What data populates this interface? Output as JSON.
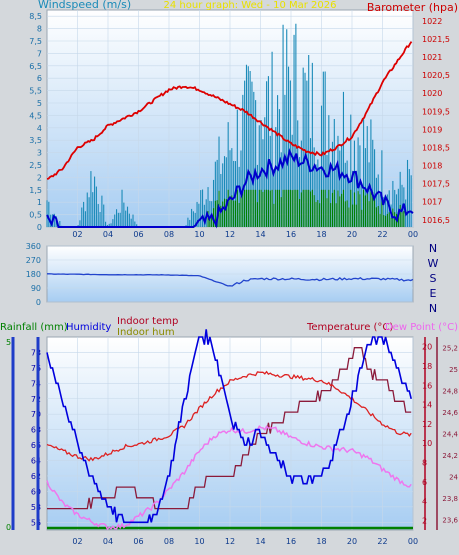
{
  "header": {
    "windspeed_label": "Windspeed (m/s)",
    "period_label": "24 hour graph: Wed - 10 Mar 2026",
    "barometer_label": "Barometer (hpa)"
  },
  "wind_dir_labels": [
    "N",
    "W",
    "S",
    "E",
    "N"
  ],
  "mid_labels": {
    "rainfall": "Rainfall (mm)",
    "humidity": "Humidity",
    "indoor_temp": "Indoor temp",
    "indoor_hum": "Indoor hum",
    "temperature": "Temperature (°C)",
    "dew_point": "Dew Point (°C)"
  },
  "colors": {
    "wind_avg": "#0000cc",
    "wind_gust": "#1a8ab8",
    "wind_bar": "#008000",
    "barometer": "#dd0000",
    "direction": "#2244cc",
    "humidity": "#0000dd",
    "indoor_temp": "#8b1a3a",
    "temperature": "#dd2222",
    "dew_point": "#ee77ee",
    "rain": "#008000",
    "plot_top": "#ffffff",
    "plot_bottom": "#a7cdf2"
  },
  "chart_data": [
    {
      "type": "line",
      "title": "24 hour graph: Wed - 10 Mar 2026",
      "x_ticks": [
        "02",
        "04",
        "06",
        "08",
        "10",
        "12",
        "14",
        "16",
        "18",
        "20",
        "22",
        "00"
      ],
      "y_left": {
        "label": "Windspeed (m/s)",
        "range": [
          0,
          8.75
        ],
        "ticks": [
          "0",
          "0,5",
          "1",
          "1,5",
          "2",
          "2,5",
          "3",
          "3,5",
          "4",
          "4,5",
          "5",
          "5,5",
          "6",
          "6,5",
          "7",
          "7,5",
          "8",
          "8,5"
        ]
      },
      "y_right": {
        "label": "Barometer (hpa)",
        "range": [
          1016.3,
          1022.3
        ],
        "ticks": [
          "1016,5",
          "1017",
          "1017,5",
          "1018",
          "1018,5",
          "1019",
          "1019,5",
          "1020",
          "1020,5",
          "1021",
          "1021,5",
          "1022"
        ]
      },
      "series": [
        {
          "name": "Barometer (hpa)",
          "x": [
            0,
            1,
            2,
            3,
            4,
            5,
            6,
            7,
            8,
            9,
            10,
            11,
            12,
            13,
            14,
            15,
            16,
            17,
            18,
            19,
            20,
            21,
            22,
            23,
            24
          ],
          "values": [
            1017.6,
            1017.9,
            1018.5,
            1018.7,
            1019.1,
            1019.3,
            1019.5,
            1019.8,
            1020.1,
            1020.2,
            1020.1,
            1019.9,
            1019.7,
            1019.5,
            1019.2,
            1018.9,
            1018.6,
            1018.4,
            1018.3,
            1018.5,
            1018.8,
            1019.5,
            1020.3,
            1020.9,
            1021.5
          ]
        },
        {
          "name": "Wind average",
          "x": [
            0,
            1,
            2,
            3,
            4,
            5,
            6,
            7,
            8,
            9,
            10,
            11,
            12,
            13,
            14,
            15,
            16,
            17,
            18,
            19,
            20,
            21,
            22,
            23,
            24
          ],
          "values": [
            0.2,
            0,
            0,
            0,
            0,
            0,
            0,
            0,
            0,
            0,
            0.1,
            0.3,
            1.0,
            1.8,
            2.3,
            2.5,
            2.8,
            2.6,
            2.4,
            2.3,
            2.1,
            1.6,
            1.0,
            0.5,
            0.8
          ]
        },
        {
          "name": "Wind gust",
          "x": [
            0,
            1,
            2,
            3,
            4,
            5,
            6,
            7,
            8,
            9,
            10,
            11,
            12,
            13,
            14,
            15,
            16,
            17,
            18,
            19,
            20,
            21,
            22,
            23,
            24
          ],
          "values": [
            1.5,
            0,
            0,
            3.0,
            0,
            1.5,
            0,
            0,
            0,
            0,
            1.5,
            3.0,
            4.5,
            6.0,
            7.0,
            6.5,
            8.5,
            7.0,
            6.5,
            6.0,
            5.5,
            4.5,
            3.0,
            2.0,
            3.0
          ]
        }
      ]
    },
    {
      "type": "line",
      "title": "",
      "y_left": {
        "ticks": [
          "360",
          "270",
          "180",
          "90",
          "0"
        ],
        "range": [
          0,
          360
        ]
      },
      "series": [
        {
          "name": "Wind direction",
          "x": [
            0,
            2,
            4,
            6,
            8,
            10,
            12,
            12.5,
            13,
            14,
            16,
            18,
            20,
            22,
            24
          ],
          "values": [
            180,
            178,
            176,
            175,
            174,
            168,
            100,
            120,
            140,
            150,
            148,
            145,
            150,
            148,
            140
          ]
        }
      ]
    },
    {
      "type": "line",
      "title": "",
      "x_ticks": [
        "02",
        "04",
        "06",
        "08",
        "10",
        "12",
        "14",
        "16",
        "18",
        "20",
        "22",
        "00"
      ],
      "y_axes": {
        "rainfall": {
          "label": "Rainfall (mm)",
          "range": [
            0,
            5
          ],
          "ticks": [
            "0",
            "5"
          ]
        },
        "humidity": {
          "label": "Humidity",
          "range": [
            55,
            80
          ],
          "ticks": [
            "56",
            "58",
            "60",
            "62",
            "64",
            "66",
            "68",
            "70",
            "72",
            "74",
            "76",
            "78"
          ]
        },
        "temperature": {
          "label": "Temperature (°C)",
          "range": [
            1,
            21
          ],
          "ticks": [
            "2",
            "4",
            "6",
            "8",
            "10",
            "12",
            "14",
            "16",
            "18",
            "20"
          ]
        },
        "indoor_temp": {
          "label": "Indoor temp",
          "range": [
            23.5,
            25.3
          ],
          "ticks": [
            "23,6",
            "23,8",
            "24",
            "24,2",
            "24,4",
            "24,6",
            "24,8",
            "25",
            "25,2"
          ]
        }
      },
      "series": [
        {
          "name": "Humidity",
          "x": [
            0,
            1,
            2,
            3,
            4,
            5,
            6,
            7,
            8,
            9,
            10,
            10.5,
            11,
            12,
            13,
            14,
            15,
            16,
            17,
            18,
            19,
            20,
            21,
            22,
            23,
            24
          ],
          "values": [
            78,
            72,
            66,
            62,
            58,
            56,
            56,
            56,
            62,
            72,
            80,
            80,
            78,
            70,
            66,
            68,
            64,
            62,
            61,
            62,
            66,
            72,
            79,
            80,
            76,
            72
          ]
        },
        {
          "name": "Temperature (°C)",
          "x": [
            0,
            1,
            2,
            3,
            4,
            5,
            6,
            7,
            8,
            9,
            10,
            11,
            12,
            13,
            14,
            15,
            16,
            17,
            18,
            19,
            20,
            21,
            22,
            23,
            24
          ],
          "values": [
            9.8,
            9.2,
            8.6,
            8.3,
            8.9,
            9.6,
            9.9,
            10.3,
            10.8,
            11.8,
            13.6,
            15.2,
            16.4,
            17.0,
            17.3,
            17.1,
            16.9,
            16.7,
            16.5,
            15.7,
            14.6,
            13.3,
            12.0,
            11.1,
            10.8
          ]
        },
        {
          "name": "Dew Point (°C)",
          "x": [
            0,
            1,
            2,
            3,
            4,
            5,
            6,
            7,
            8,
            9,
            10,
            11,
            12,
            13,
            14,
            15,
            16,
            17,
            18,
            19,
            20,
            21,
            22,
            23,
            24
          ],
          "values": [
            6.0,
            3.8,
            2.6,
            1.8,
            1.3,
            1.4,
            2.4,
            3.5,
            5.2,
            7.0,
            9.2,
            10.8,
            11.4,
            11.2,
            11.6,
            11.4,
            10.6,
            10.0,
            9.6,
            9.4,
            9.2,
            8.5,
            7.3,
            6.2,
            5.4
          ]
        },
        {
          "name": "Indoor temp",
          "x": [
            0,
            2,
            4,
            5,
            6,
            7,
            8,
            9,
            10,
            11,
            12,
            13,
            14,
            15,
            16,
            17,
            18,
            19,
            20,
            20.5,
            21,
            22,
            23,
            24
          ],
          "values": [
            23.7,
            23.7,
            23.8,
            23.9,
            23.85,
            23.75,
            23.7,
            23.7,
            23.9,
            24.0,
            24.0,
            24.2,
            24.4,
            24.5,
            24.6,
            24.7,
            24.75,
            24.9,
            25.1,
            25.25,
            25.0,
            24.9,
            24.7,
            24.6
          ]
        }
      ]
    }
  ]
}
